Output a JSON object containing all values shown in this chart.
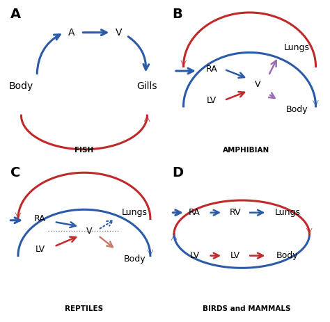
{
  "blue": "#2B5BA8",
  "red": "#C0292A",
  "purple": "#9B6BB5",
  "salmon": "#C87B6B",
  "bg": "#ffffff",
  "panel_labels": [
    "A",
    "B",
    "C",
    "D"
  ],
  "subtitles": [
    "FISH",
    "AMPHIBIAN",
    "REPTILES",
    "BIRDS and MAMMALS"
  ]
}
